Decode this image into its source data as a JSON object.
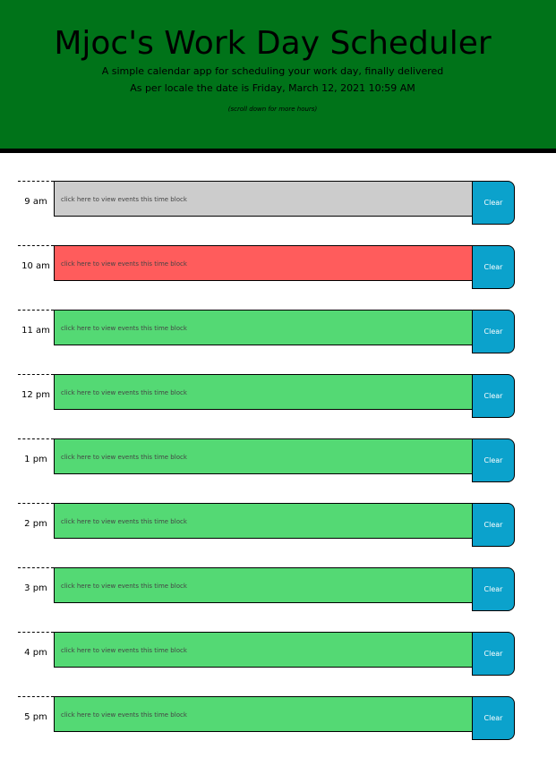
{
  "header": {
    "title": "Mjoc's Work Day Scheduler",
    "subtitle": "A simple calendar app for scheduling your work day, finally delivered",
    "date_line": "As per locale the date is Friday, March 12, 2021 10:59 AM",
    "scroll_hint": "(scroll down for more hours)"
  },
  "colors": {
    "header_bg": "#007319",
    "past": "#cccccc",
    "present": "#ff5c5c",
    "future": "#54d974",
    "clear_button": "#0ba2cc"
  },
  "time_blocks": [
    {
      "hour": "9 am",
      "placeholder": "click here to view events this time block",
      "state": "past",
      "clear_label": "Clear"
    },
    {
      "hour": "10 am",
      "placeholder": "click here to view events this time block",
      "state": "present",
      "clear_label": "Clear"
    },
    {
      "hour": "11 am",
      "placeholder": "click here to view events this time block",
      "state": "future",
      "clear_label": "Clear"
    },
    {
      "hour": "12 pm",
      "placeholder": "click here to view events this time block",
      "state": "future",
      "clear_label": "Clear"
    },
    {
      "hour": "1 pm",
      "placeholder": "click here to view events this time block",
      "state": "future",
      "clear_label": "Clear"
    },
    {
      "hour": "2 pm",
      "placeholder": "click here to view events this time block",
      "state": "future",
      "clear_label": "Clear"
    },
    {
      "hour": "3 pm",
      "placeholder": "click here to view events this time block",
      "state": "future",
      "clear_label": "Clear"
    },
    {
      "hour": "4 pm",
      "placeholder": "click here to view events this time block",
      "state": "future",
      "clear_label": "Clear"
    },
    {
      "hour": "5 pm",
      "placeholder": "click here to view events this time block",
      "state": "future",
      "clear_label": "Clear"
    }
  ]
}
